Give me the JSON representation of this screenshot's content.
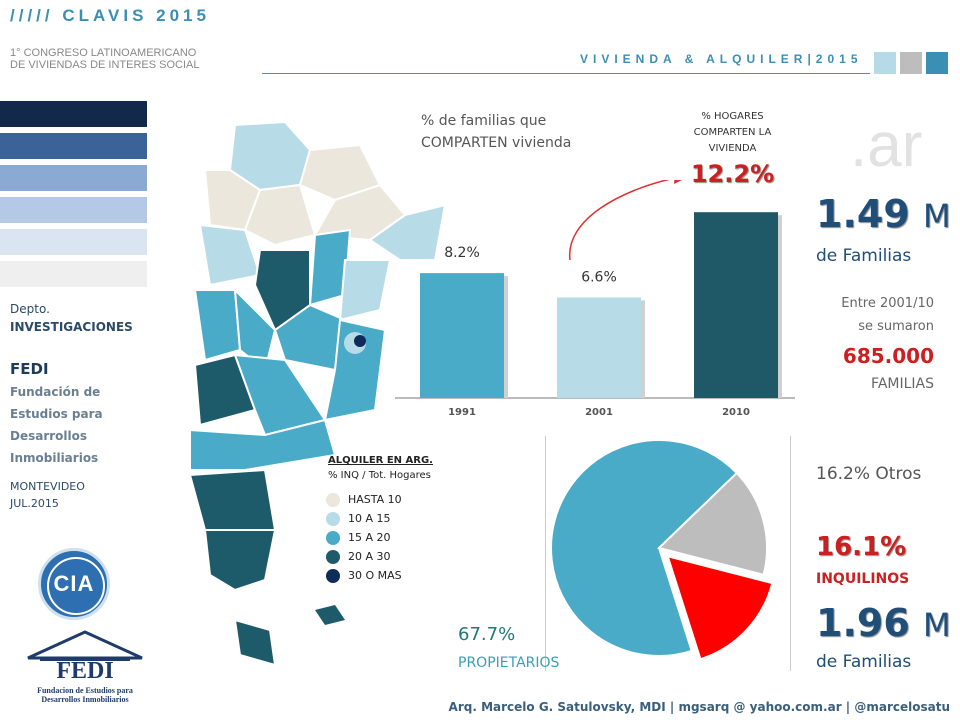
{
  "header": {
    "brand": "///// CLAVIS 2015",
    "subtitle_line1": "1° CONGRESO LATINOAMERICANO",
    "subtitle_line2": "DE VIVIENDAS DE INTERES SOCIAL",
    "tagline": "VIVIENDA & ALQUILER|2015",
    "squares": [
      "#b6dbe7",
      "#bdbdbd",
      "#3a8fb5"
    ]
  },
  "side_legend_colors": [
    "#13294b",
    "#3c6397",
    "#8aa9d3",
    "#b5c8e6",
    "#dbe4f1",
    "#efefef"
  ],
  "sidebar": {
    "dept": "Depto.",
    "dept_name": "INVESTIGACIONES",
    "org": "FEDI",
    "org_full": "Fundación de Estudios para Desarrollos Inmobiliarios",
    "city": "MONTEVIDEO",
    "date": "JUL.2015",
    "cia_logo": "CIA",
    "fedi_logo": "FEDI",
    "fedi_logo_sub": "Fundacion de Estudios para Desarrollos Inmobiliarios"
  },
  "watermark": ".ar",
  "map_legend": {
    "title": "ALQUILER EN ARG.",
    "subtitle": "% INQ / Tot. Hogares",
    "items": [
      {
        "label": "HASTA 10",
        "color": "#ebe7dc"
      },
      {
        "label": "10 A 15",
        "color": "#b8dbe8"
      },
      {
        "label": "15 A 20",
        "color": "#4aabc8"
      },
      {
        "label": "20 A 30",
        "color": "#1d5a6a"
      },
      {
        "label": "30 O MAS",
        "color": "#0e2b5a"
      }
    ]
  },
  "bar_section": {
    "note": "% de familias que COMPARTEN vivienda",
    "callout_title": "% HOGARES COMPARTEN LA VIVIENDA",
    "callout_value": "12.2%",
    "stats": {
      "value": "1.49",
      "unit": "M",
      "unit_label": "de Familias",
      "sub1": "Entre 2001/10",
      "sub2": "se sumaron",
      "added": "685.000",
      "added_label": "FAMILIAS"
    }
  },
  "pie_section": {
    "others": "16.2% Otros",
    "renters_value": "16.1%",
    "renters_label": "INQUILINOS",
    "owners_value": "67.7%",
    "owners_label": "PROPIETARIOS",
    "total_value": "1.96",
    "total_unit": "M",
    "total_label": "de Familias"
  },
  "footer": "Arq. Marcelo G. Satulovsky, MDI | mgsarq @ yahoo.com.ar | @marcelosatu",
  "chart_data": [
    {
      "type": "bar",
      "categories": [
        "1991",
        "2001",
        "2010"
      ],
      "values": [
        8.2,
        6.6,
        12.2
      ],
      "value_labels": [
        "8.2%",
        "6.6%",
        "12.2%"
      ],
      "colors": [
        "#4aabc8",
        "#b8dbe8",
        "#1f5867"
      ],
      "ylim": [
        0,
        13
      ]
    },
    {
      "type": "pie",
      "labels": [
        "PROPIETARIOS",
        "INQUILINOS",
        "Otros"
      ],
      "values": [
        67.7,
        16.1,
        16.2
      ],
      "colors": [
        "#4aabc8",
        "#ff0000",
        "#bdbdbd"
      ]
    }
  ]
}
